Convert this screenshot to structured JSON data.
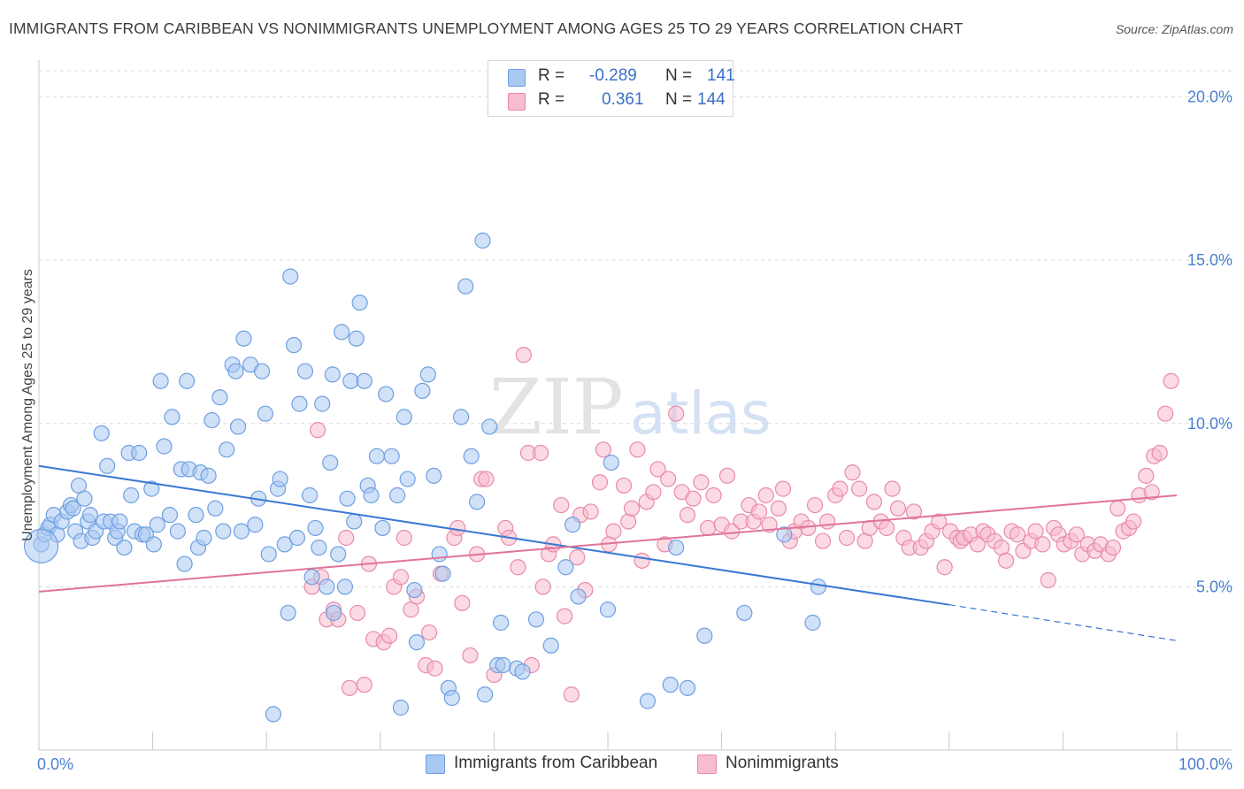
{
  "title": "IMMIGRANTS FROM CARIBBEAN VS NONIMMIGRANTS UNEMPLOYMENT AMONG AGES 25 TO 29 YEARS CORRELATION CHART",
  "source": "Source: ZipAtlas.com",
  "watermark": {
    "zip": "ZIP",
    "atlas": "atlas"
  },
  "legend_top": {
    "r_label": "R =",
    "n_label": "N =",
    "series": [
      {
        "r": "-0.289",
        "n": "141",
        "swatch": "#a9c8f2",
        "stroke": "#6f9fe0"
      },
      {
        "r": "0.361",
        "n": "144",
        "swatch": "#f7bccd",
        "stroke": "#e98aa7"
      }
    ]
  },
  "legend_bottom": [
    {
      "label": "Immigrants from Caribbean",
      "swatch": "#a9c8f2",
      "stroke": "#6f9fe0"
    },
    {
      "label": "Nonimmigrants",
      "swatch": "#f7bccd",
      "stroke": "#e98aa7"
    }
  ],
  "chart_data": {
    "type": "scatter",
    "ylabel": "Unemployment Among Ages 25 to 29 years",
    "x_tick_labels": [
      "0.0%",
      "100.0%"
    ],
    "y_tick_labels": [
      "5.0%",
      "10.0%",
      "15.0%",
      "20.0%"
    ],
    "y_ticks": [
      5,
      10,
      15,
      20
    ],
    "xlim": [
      0,
      100
    ],
    "ylim": [
      0,
      20.8
    ],
    "grid": true,
    "legend_placement": "top-center",
    "colors": {
      "blue_fill": "#a9c8f2",
      "blue_stroke": "#6f9fe0",
      "blue_line": "#3a78d4",
      "pink_fill": "#f7bccd",
      "pink_stroke": "#e98aa7",
      "pink_line": "#e0739a",
      "tick_text": "#4a7fd0"
    },
    "series": [
      {
        "name": "Immigrants from Caribbean",
        "color": "blue",
        "trend": {
          "x0": 0,
          "y0": 8.7,
          "x1": 80,
          "y1": 4.45,
          "dash_to_x": 100,
          "dash_to_y": 3.35
        },
        "points": [
          [
            0.2,
            6.3
          ],
          [
            0.5,
            6.6
          ],
          [
            0.8,
            6.8
          ],
          [
            1.0,
            6.9
          ],
          [
            1.3,
            7.2
          ],
          [
            1.6,
            6.6
          ],
          [
            2.0,
            7.0
          ],
          [
            2.5,
            7.3
          ],
          [
            2.8,
            7.5
          ],
          [
            3.0,
            7.4
          ],
          [
            3.2,
            6.7
          ],
          [
            3.5,
            8.1
          ],
          [
            3.7,
            6.4
          ],
          [
            4.0,
            7.7
          ],
          [
            4.3,
            7.0
          ],
          [
            4.5,
            7.2
          ],
          [
            4.7,
            6.5
          ],
          [
            5.0,
            6.7
          ],
          [
            5.5,
            9.7
          ],
          [
            5.7,
            7.0
          ],
          [
            6.0,
            8.7
          ],
          [
            6.3,
            7.0
          ],
          [
            6.7,
            6.5
          ],
          [
            6.9,
            6.7
          ],
          [
            7.1,
            7.0
          ],
          [
            7.5,
            6.2
          ],
          [
            7.9,
            9.1
          ],
          [
            8.1,
            7.8
          ],
          [
            8.4,
            6.7
          ],
          [
            8.8,
            9.1
          ],
          [
            9.1,
            6.6
          ],
          [
            9.4,
            6.6
          ],
          [
            9.9,
            8.0
          ],
          [
            10.1,
            6.3
          ],
          [
            10.4,
            6.9
          ],
          [
            10.7,
            11.3
          ],
          [
            11.0,
            9.3
          ],
          [
            11.5,
            7.2
          ],
          [
            11.7,
            10.2
          ],
          [
            12.2,
            6.7
          ],
          [
            12.5,
            8.6
          ],
          [
            12.8,
            5.7
          ],
          [
            13.0,
            11.3
          ],
          [
            13.2,
            8.6
          ],
          [
            13.8,
            7.2
          ],
          [
            14.0,
            6.2
          ],
          [
            14.2,
            8.5
          ],
          [
            14.5,
            6.5
          ],
          [
            14.9,
            8.4
          ],
          [
            15.2,
            10.1
          ],
          [
            15.5,
            7.4
          ],
          [
            15.9,
            10.8
          ],
          [
            16.2,
            6.7
          ],
          [
            16.5,
            9.2
          ],
          [
            17.0,
            11.8
          ],
          [
            17.3,
            11.6
          ],
          [
            17.5,
            9.9
          ],
          [
            17.8,
            6.7
          ],
          [
            18.0,
            12.6
          ],
          [
            18.6,
            11.8
          ],
          [
            19.0,
            6.9
          ],
          [
            19.3,
            7.7
          ],
          [
            19.6,
            11.6
          ],
          [
            19.9,
            10.3
          ],
          [
            20.2,
            6.0
          ],
          [
            20.6,
            1.1
          ],
          [
            21.0,
            8.0
          ],
          [
            21.2,
            8.3
          ],
          [
            21.6,
            6.3
          ],
          [
            21.9,
            4.2
          ],
          [
            22.1,
            14.5
          ],
          [
            22.4,
            12.4
          ],
          [
            22.7,
            6.5
          ],
          [
            22.9,
            10.6
          ],
          [
            23.4,
            11.6
          ],
          [
            23.8,
            7.8
          ],
          [
            24.0,
            5.3
          ],
          [
            24.3,
            6.8
          ],
          [
            24.6,
            6.2
          ],
          [
            24.9,
            10.6
          ],
          [
            25.3,
            5.0
          ],
          [
            25.6,
            8.8
          ],
          [
            25.8,
            11.5
          ],
          [
            25.9,
            4.2
          ],
          [
            26.3,
            6.0
          ],
          [
            26.6,
            12.8
          ],
          [
            26.9,
            5.0
          ],
          [
            27.1,
            7.7
          ],
          [
            27.4,
            11.3
          ],
          [
            27.7,
            7.0
          ],
          [
            27.9,
            12.6
          ],
          [
            28.2,
            13.7
          ],
          [
            28.6,
            11.3
          ],
          [
            28.9,
            8.1
          ],
          [
            29.2,
            7.8
          ],
          [
            29.7,
            9.0
          ],
          [
            30.2,
            6.8
          ],
          [
            30.5,
            10.9
          ],
          [
            31.0,
            9.0
          ],
          [
            31.5,
            7.8
          ],
          [
            31.8,
            1.3
          ],
          [
            32.1,
            10.2
          ],
          [
            32.4,
            8.3
          ],
          [
            33.0,
            4.9
          ],
          [
            33.2,
            3.3
          ],
          [
            33.7,
            11.0
          ],
          [
            34.2,
            11.5
          ],
          [
            34.7,
            8.4
          ],
          [
            35.2,
            6.0
          ],
          [
            35.5,
            5.4
          ],
          [
            36.0,
            1.9
          ],
          [
            36.3,
            1.6
          ],
          [
            37.1,
            10.2
          ],
          [
            37.5,
            14.2
          ],
          [
            38.0,
            9.0
          ],
          [
            38.5,
            7.6
          ],
          [
            39.0,
            15.6
          ],
          [
            39.2,
            1.7
          ],
          [
            39.6,
            9.9
          ],
          [
            40.3,
            2.6
          ],
          [
            40.6,
            3.9
          ],
          [
            40.8,
            2.6
          ],
          [
            42.0,
            2.5
          ],
          [
            42.5,
            2.4
          ],
          [
            43.7,
            4.0
          ],
          [
            45.0,
            3.2
          ],
          [
            46.3,
            5.6
          ],
          [
            46.9,
            6.9
          ],
          [
            47.4,
            4.7
          ],
          [
            50.0,
            4.3
          ],
          [
            50.3,
            8.8
          ],
          [
            53.5,
            1.5
          ],
          [
            55.5,
            2.0
          ],
          [
            56.0,
            6.2
          ],
          [
            57.0,
            1.9
          ],
          [
            58.5,
            3.5
          ],
          [
            62.0,
            4.2
          ],
          [
            65.5,
            6.6
          ],
          [
            68.0,
            3.9
          ],
          [
            68.5,
            5.0
          ]
        ]
      },
      {
        "name": "Nonimmigrants",
        "color": "pink",
        "trend": {
          "x0": 0,
          "y0": 4.85,
          "x1": 100,
          "y1": 7.8
        },
        "points": [
          [
            24.0,
            5.0
          ],
          [
            24.5,
            9.8
          ],
          [
            24.8,
            5.3
          ],
          [
            25.3,
            4.0
          ],
          [
            25.9,
            4.3
          ],
          [
            26.3,
            4.0
          ],
          [
            27.0,
            6.5
          ],
          [
            27.3,
            1.9
          ],
          [
            28.0,
            4.2
          ],
          [
            28.6,
            2.0
          ],
          [
            29.0,
            5.7
          ],
          [
            29.4,
            3.4
          ],
          [
            30.3,
            3.3
          ],
          [
            30.8,
            3.5
          ],
          [
            31.2,
            5.0
          ],
          [
            31.8,
            5.3
          ],
          [
            32.1,
            6.5
          ],
          [
            32.7,
            4.3
          ],
          [
            33.2,
            4.7
          ],
          [
            34.0,
            2.6
          ],
          [
            34.3,
            3.6
          ],
          [
            34.8,
            2.5
          ],
          [
            35.3,
            5.4
          ],
          [
            36.5,
            6.5
          ],
          [
            36.8,
            6.8
          ],
          [
            37.2,
            4.5
          ],
          [
            37.9,
            2.9
          ],
          [
            38.5,
            6.0
          ],
          [
            38.9,
            8.3
          ],
          [
            39.3,
            8.3
          ],
          [
            40.0,
            2.3
          ],
          [
            41.0,
            6.8
          ],
          [
            41.3,
            6.5
          ],
          [
            42.1,
            5.6
          ],
          [
            42.6,
            12.1
          ],
          [
            43.0,
            9.1
          ],
          [
            43.3,
            2.6
          ],
          [
            44.1,
            9.1
          ],
          [
            44.3,
            5.0
          ],
          [
            44.8,
            6.0
          ],
          [
            45.2,
            6.3
          ],
          [
            45.9,
            7.5
          ],
          [
            46.2,
            4.1
          ],
          [
            46.8,
            1.7
          ],
          [
            47.3,
            5.9
          ],
          [
            47.6,
            7.2
          ],
          [
            48.0,
            4.9
          ],
          [
            48.5,
            7.3
          ],
          [
            49.3,
            8.2
          ],
          [
            49.6,
            9.2
          ],
          [
            50.1,
            6.3
          ],
          [
            50.5,
            6.7
          ],
          [
            51.4,
            8.1
          ],
          [
            51.8,
            7.0
          ],
          [
            52.1,
            7.4
          ],
          [
            52.6,
            9.2
          ],
          [
            53.0,
            5.8
          ],
          [
            53.4,
            7.6
          ],
          [
            54.0,
            7.9
          ],
          [
            54.4,
            8.6
          ],
          [
            55.0,
            6.3
          ],
          [
            55.3,
            8.3
          ],
          [
            56.0,
            10.3
          ],
          [
            56.5,
            7.9
          ],
          [
            57.0,
            7.2
          ],
          [
            57.5,
            7.7
          ],
          [
            58.2,
            8.2
          ],
          [
            58.8,
            6.8
          ],
          [
            59.3,
            7.8
          ],
          [
            60.0,
            6.9
          ],
          [
            60.5,
            8.4
          ],
          [
            60.9,
            6.7
          ],
          [
            61.7,
            7.0
          ],
          [
            62.4,
            7.5
          ],
          [
            62.8,
            7.0
          ],
          [
            63.3,
            7.3
          ],
          [
            63.9,
            7.8
          ],
          [
            64.2,
            6.9
          ],
          [
            65.0,
            7.4
          ],
          [
            65.4,
            8.0
          ],
          [
            66.0,
            6.4
          ],
          [
            66.4,
            6.7
          ],
          [
            67.0,
            7.0
          ],
          [
            67.6,
            6.8
          ],
          [
            68.2,
            7.5
          ],
          [
            68.9,
            6.4
          ],
          [
            69.3,
            7.0
          ],
          [
            70.0,
            7.8
          ],
          [
            70.4,
            8.0
          ],
          [
            71.0,
            6.5
          ],
          [
            71.5,
            8.5
          ],
          [
            72.1,
            8.0
          ],
          [
            72.6,
            6.4
          ],
          [
            73.0,
            6.8
          ],
          [
            73.4,
            7.6
          ],
          [
            74.0,
            7.0
          ],
          [
            74.5,
            6.8
          ],
          [
            75.0,
            8.0
          ],
          [
            75.5,
            7.4
          ],
          [
            76.0,
            6.5
          ],
          [
            76.5,
            6.2
          ],
          [
            76.9,
            7.3
          ],
          [
            77.5,
            6.2
          ],
          [
            78.0,
            6.4
          ],
          [
            78.5,
            6.7
          ],
          [
            79.1,
            7.0
          ],
          [
            79.6,
            5.6
          ],
          [
            80.1,
            6.7
          ],
          [
            80.7,
            6.5
          ],
          [
            81.0,
            6.4
          ],
          [
            81.3,
            6.5
          ],
          [
            81.9,
            6.6
          ],
          [
            82.5,
            6.3
          ],
          [
            83.0,
            6.7
          ],
          [
            83.4,
            6.6
          ],
          [
            84.0,
            6.4
          ],
          [
            84.6,
            6.2
          ],
          [
            85.0,
            5.8
          ],
          [
            85.5,
            6.7
          ],
          [
            86.0,
            6.6
          ],
          [
            86.5,
            6.1
          ],
          [
            87.2,
            6.4
          ],
          [
            87.6,
            6.7
          ],
          [
            88.2,
            6.3
          ],
          [
            88.7,
            5.2
          ],
          [
            89.2,
            6.8
          ],
          [
            89.6,
            6.6
          ],
          [
            90.1,
            6.3
          ],
          [
            90.7,
            6.4
          ],
          [
            91.2,
            6.6
          ],
          [
            91.7,
            6.0
          ],
          [
            92.2,
            6.3
          ],
          [
            92.8,
            6.1
          ],
          [
            93.3,
            6.3
          ],
          [
            94.0,
            6.0
          ],
          [
            94.4,
            6.2
          ],
          [
            94.8,
            7.4
          ],
          [
            95.3,
            6.7
          ],
          [
            95.8,
            6.8
          ],
          [
            96.2,
            7.0
          ],
          [
            96.7,
            7.8
          ],
          [
            97.3,
            8.4
          ],
          [
            97.8,
            7.9
          ],
          [
            98.0,
            9.0
          ],
          [
            98.5,
            9.1
          ],
          [
            99.0,
            10.3
          ],
          [
            99.5,
            11.3
          ]
        ]
      }
    ]
  }
}
